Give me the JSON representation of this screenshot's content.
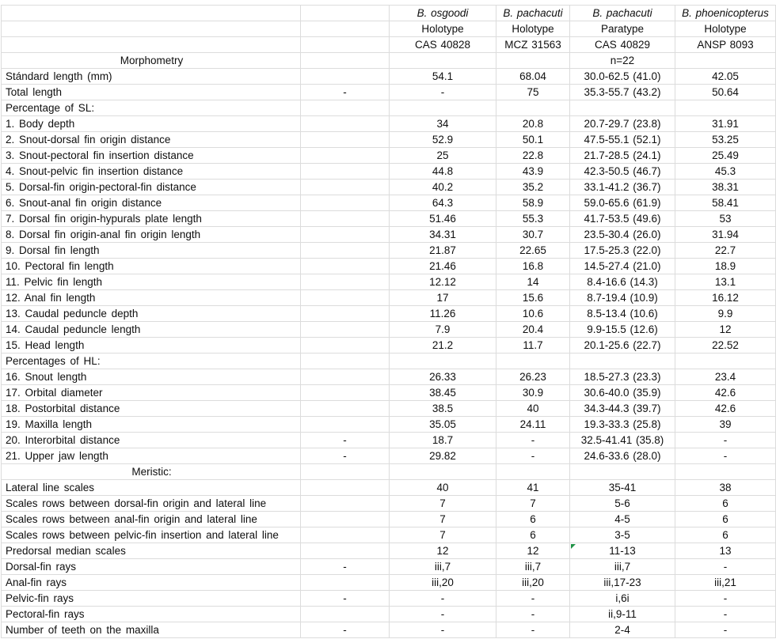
{
  "colors": {
    "background": "#ffffff",
    "gridline": "#dcdcdc",
    "text": "#0f0f0f",
    "flag_green": "#1f9246"
  },
  "table": {
    "species_row": [
      "B. osgoodi",
      "B. pachacuti",
      "B. pachacuti",
      "B. phoenicopterus"
    ],
    "type_row": [
      "Holotype",
      "Holotype",
      "Paratype",
      "Holotype"
    ],
    "catalog_row": [
      "CAS 40828",
      "MCZ 31563",
      "CAS 40829",
      "ANSP 8093"
    ],
    "section_morphometry": "Morphometry",
    "sample_size": "n=22",
    "rows": [
      {
        "label": "Stándard length (mm)",
        "label_align": "left",
        "dash": "",
        "values": [
          "54.1",
          "68.04",
          "30.0-62.5 (41.0)",
          "42.05"
        ]
      },
      {
        "label": "Total length",
        "label_align": "left",
        "dash": "-",
        "values": [
          "-",
          "75",
          "35.3-55.7 (43.2)",
          "50.64"
        ]
      },
      {
        "label": "Percentage of SL:",
        "label_align": "left",
        "dash": "",
        "values": [
          "",
          "",
          "",
          ""
        ]
      },
      {
        "label": "1. Body depth",
        "label_align": "left",
        "dash": "",
        "values": [
          "34",
          "20.8",
          "20.7-29.7 (23.8)",
          "31.91"
        ]
      },
      {
        "label": "2. Snout-dorsal fin origin distance",
        "label_align": "left",
        "dash": "",
        "values": [
          "52.9",
          "50.1",
          "47.5-55.1 (52.1)",
          "53.25"
        ]
      },
      {
        "label": "3. Snout-pectoral fin insertion distance",
        "label_align": "left",
        "dash": "",
        "values": [
          "25",
          "22.8",
          "21.7-28.5 (24.1)",
          "25.49"
        ]
      },
      {
        "label": "4. Snout-pelvic fin insertion distance",
        "label_align": "left",
        "dash": "",
        "values": [
          "44.8",
          "43.9",
          "42.3-50.5 (46.7)",
          "45.3"
        ]
      },
      {
        "label": "5. Dorsal-fin origin-pectoral-fin distance",
        "label_align": "left",
        "dash": "",
        "values": [
          "40.2",
          "35.2",
          "33.1-41.2 (36.7)",
          "38.31"
        ]
      },
      {
        "label": "6. Snout-anal fin origin distance",
        "label_align": "left",
        "dash": "",
        "values": [
          "64.3",
          "58.9",
          "59.0-65.6 (61.9)",
          "58.41"
        ]
      },
      {
        "label": "7. Dorsal fin origin-hypurals plate length",
        "label_align": "left",
        "dash": "",
        "values": [
          "51.46",
          "55.3",
          "41.7-53.5 (49.6)",
          "53"
        ]
      },
      {
        "label": "8. Dorsal fin origin-anal fin origin length",
        "label_align": "left",
        "dash": "",
        "values": [
          "34.31",
          "30.7",
          "23.5-30.4 (26.0)",
          "31.94"
        ]
      },
      {
        "label": "9. Dorsal fin length",
        "label_align": "left",
        "dash": "",
        "values": [
          "21.87",
          "22.65",
          "17.5-25.3 (22.0)",
          "22.7"
        ]
      },
      {
        "label": "10. Pectoral fin length",
        "label_align": "left",
        "dash": "",
        "values": [
          "21.46",
          "16.8",
          "14.5-27.4 (21.0)",
          "18.9"
        ]
      },
      {
        "label": "11. Pelvic fin length",
        "label_align": "left",
        "dash": "",
        "values": [
          "12.12",
          "14",
          "8.4-16.6 (14.3)",
          "13.1"
        ]
      },
      {
        "label": "12. Anal fin length",
        "label_align": "left",
        "dash": "",
        "values": [
          "17",
          "15.6",
          "8.7-19.4 (10.9)",
          "16.12"
        ]
      },
      {
        "label": "13. Caudal peduncle depth",
        "label_align": "left",
        "dash": "",
        "values": [
          "11.26",
          "10.6",
          "8.5-13.4 (10.6)",
          "9.9"
        ]
      },
      {
        "label": "14. Caudal peduncle length",
        "label_align": "left",
        "dash": "",
        "values": [
          "7.9",
          "20.4",
          "9.9-15.5 (12.6)",
          "12"
        ]
      },
      {
        "label": "15. Head length",
        "label_align": "left",
        "dash": "",
        "values": [
          "21.2",
          "11.7",
          "20.1-25.6 (22.7)",
          "22.52"
        ]
      },
      {
        "label": "Percentages of HL:",
        "label_align": "left",
        "dash": "",
        "values": [
          "",
          "",
          "",
          ""
        ]
      },
      {
        "label": "16. Snout length",
        "label_align": "left",
        "dash": "",
        "values": [
          "26.33",
          "26.23",
          "18.5-27.3 (23.3)",
          "23.4"
        ]
      },
      {
        "label": "17. Orbital diameter",
        "label_align": "left",
        "dash": "",
        "values": [
          "38.45",
          "30.9",
          "30.6-40.0 (35.9)",
          "42.6"
        ]
      },
      {
        "label": "18. Postorbital distance",
        "label_align": "left",
        "dash": "",
        "values": [
          "38.5",
          "40",
          "34.3-44.3 (39.7)",
          "42.6"
        ]
      },
      {
        "label": "19. Maxilla length",
        "label_align": "left",
        "dash": "",
        "values": [
          "35.05",
          "24.11",
          "19.3-33.3 (25.8)",
          "39"
        ]
      },
      {
        "label": "20. Interorbital distance",
        "label_align": "left",
        "dash": "-",
        "values": [
          "18.7",
          "-",
          "32.5-41.41 (35.8)",
          "-"
        ]
      },
      {
        "label": "21. Upper jaw length",
        "label_align": "left",
        "dash": "-",
        "values": [
          "29.82",
          "-",
          "24.6-33.6 (28.0)",
          "-"
        ]
      },
      {
        "label": "Meristic:",
        "label_align": "center",
        "dash": "",
        "values": [
          "",
          "",
          "",
          ""
        ]
      },
      {
        "label": "Lateral line scales",
        "label_align": "left",
        "dash": "",
        "values": [
          "40",
          "41",
          "35-41",
          "38"
        ]
      },
      {
        "label": "Scales rows between dorsal-fin origin and lateral line",
        "label_align": "left",
        "dash": "",
        "values": [
          "7",
          "7",
          "5-6",
          "6"
        ]
      },
      {
        "label": "Scales rows between anal-fin origin and lateral line",
        "label_align": "left",
        "dash": "",
        "values": [
          "7",
          "6",
          "4-5",
          "6"
        ]
      },
      {
        "label": "Scales rows between pelvic-fin insertion and lateral line",
        "label_align": "left",
        "dash": "",
        "values": [
          "7",
          "6",
          "3-5",
          "6"
        ]
      },
      {
        "label": "Predorsal median scales",
        "label_align": "left",
        "dash": "",
        "values": [
          "12",
          "12",
          "11-13",
          "13"
        ],
        "flag": 2
      },
      {
        "label": "Dorsal-fin rays",
        "label_align": "left",
        "dash": "-",
        "values": [
          "iii,7",
          "iii,7",
          "iii,7",
          "-"
        ]
      },
      {
        "label": "Anal-fin rays",
        "label_align": "left",
        "dash": "",
        "values": [
          "iii,20",
          "iii,20",
          "iii,17-23",
          "iii,21"
        ]
      },
      {
        "label": "Pelvic-fin rays",
        "label_align": "left",
        "dash": "-",
        "values": [
          "-",
          "-",
          "i,6i",
          "-"
        ]
      },
      {
        "label": "Pectoral-fin rays",
        "label_align": "left",
        "dash": "",
        "values": [
          "-",
          "-",
          "ii,9-11",
          "-"
        ]
      },
      {
        "label": "Number of teeth on the maxilla",
        "label_align": "left",
        "dash": "-",
        "values": [
          "-",
          "-",
          "2-4",
          "-"
        ]
      }
    ]
  }
}
